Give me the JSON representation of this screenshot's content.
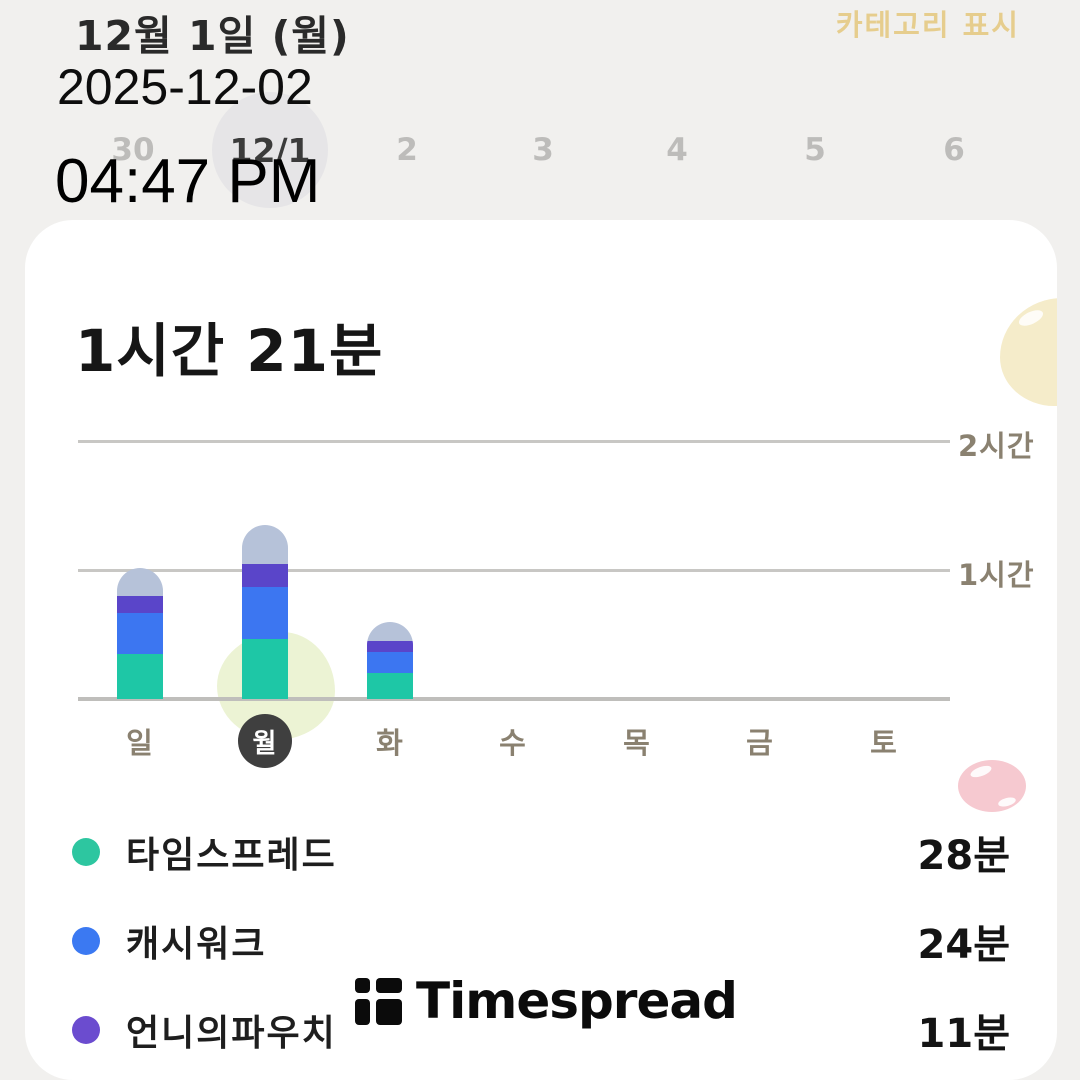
{
  "header": {
    "title": "12월 1일 (월)",
    "category_toggle_label": "카테고리 표시",
    "overlay": {
      "date": "2025-12-02",
      "time": "04:47 PM"
    }
  },
  "date_strip": {
    "items": [
      {
        "label": "30",
        "selected": false
      },
      {
        "label": "12/1",
        "selected": true
      },
      {
        "label": "2",
        "selected": false
      },
      {
        "label": "3",
        "selected": false
      },
      {
        "label": "4",
        "selected": false
      },
      {
        "label": "5",
        "selected": false
      },
      {
        "label": "6",
        "selected": false
      }
    ]
  },
  "card": {
    "total_time_label": "1시간 21분",
    "watermark": "Timespread"
  },
  "chart_data": {
    "type": "bar",
    "stacked": true,
    "title": "1시간 21분",
    "categories": [
      "일",
      "월",
      "화",
      "수",
      "목",
      "금",
      "토"
    ],
    "selected_category": "월",
    "series": [
      {
        "name": "타임스프레드",
        "color": "#1ec7a6",
        "values_min": [
          21,
          28,
          12,
          0,
          0,
          0,
          0
        ]
      },
      {
        "name": "캐시워크",
        "color": "#3c76f1",
        "values_min": [
          19,
          24,
          10,
          0,
          0,
          0,
          0
        ]
      },
      {
        "name": "언니의파우치",
        "color": "#5a45c9",
        "values_min": [
          8,
          11,
          5,
          0,
          0,
          0,
          0
        ]
      },
      {
        "name": "",
        "color": "#b6c2d9",
        "values_min": [
          13,
          18,
          9,
          0,
          0,
          0,
          0
        ]
      }
    ],
    "y_axis": {
      "ticks": [
        {
          "label": "1시간",
          "minutes": 60
        },
        {
          "label": "2시간",
          "minutes": 120
        }
      ],
      "max_minutes": 130
    },
    "grid": true,
    "legend_position": "bottom"
  },
  "legend": {
    "items": [
      {
        "name": "타임스프레드",
        "value": "28분",
        "color": "#2dc6a0"
      },
      {
        "name": "캐시워크",
        "value": "24분",
        "color": "#3b79f2"
      },
      {
        "name": "언니의파우치",
        "value": "11분",
        "color": "#6b4ccf"
      }
    ]
  },
  "colors": {
    "background": "#f1f0ee",
    "card": "#ffffff",
    "accent_tan": "#e6cd8d",
    "selected_day_circle": "#3f3f3f",
    "date_circle": "#e6e5e7"
  }
}
